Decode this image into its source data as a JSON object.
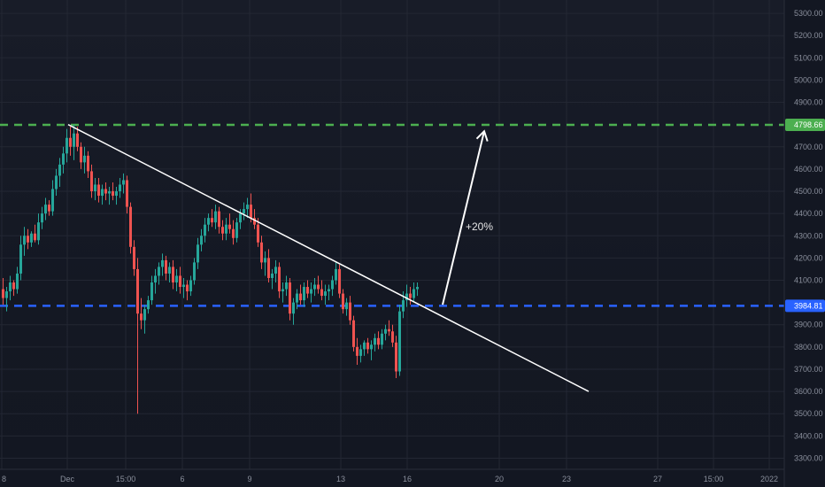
{
  "chart_data": {
    "type": "candlestick",
    "title": "",
    "xlabel": "",
    "ylabel": "",
    "ylim": [
      3250,
      5360
    ],
    "grid": true,
    "y_ticks": [
      {
        "value": 5300,
        "label": "5300.00"
      },
      {
        "value": 5200,
        "label": "5200.00"
      },
      {
        "value": 5100,
        "label": "5100.00"
      },
      {
        "value": 5000,
        "label": "5000.00"
      },
      {
        "value": 4900,
        "label": "4900.00"
      },
      {
        "value": 4700,
        "label": "4700.00"
      },
      {
        "value": 4600,
        "label": "4600.00"
      },
      {
        "value": 4500,
        "label": "4500.00"
      },
      {
        "value": 4400,
        "label": "4400.00"
      },
      {
        "value": 4300,
        "label": "4300.00"
      },
      {
        "value": 4200,
        "label": "4200.00"
      },
      {
        "value": 4100,
        "label": "4100.00"
      },
      {
        "value": 3900,
        "label": "3900.00"
      },
      {
        "value": 3800,
        "label": "3800.00"
      },
      {
        "value": 3700,
        "label": "3700.00"
      },
      {
        "value": 3600,
        "label": "3600.00"
      },
      {
        "value": 3500,
        "label": "3500.00"
      },
      {
        "value": 3400,
        "label": "3400.00"
      },
      {
        "value": 3300,
        "label": "3300.00"
      }
    ],
    "x_ticks": [
      {
        "index": 0,
        "label": "8"
      },
      {
        "index": 74,
        "label": "Dec"
      },
      {
        "index": 140,
        "label": "15:00"
      },
      {
        "index": 204,
        "label": "6"
      },
      {
        "index": 280,
        "label": "9"
      },
      {
        "index": 383,
        "label": "13"
      },
      {
        "index": 458,
        "label": "16"
      },
      {
        "index": 562,
        "label": "20"
      },
      {
        "index": 638,
        "label": "23"
      },
      {
        "index": 741,
        "label": "27"
      },
      {
        "index": 804,
        "label": "15:00"
      },
      {
        "index": 867,
        "label": "2022"
      }
    ],
    "levels": [
      {
        "name": "resistance",
        "value": 4798.66,
        "label": "4798.66",
        "color": "#4caf50"
      },
      {
        "name": "support",
        "value": 3984.81,
        "label": "3984.81",
        "color": "#2962ff"
      }
    ],
    "trendline": {
      "from": [
        75,
        4800
      ],
      "to": [
        663,
        3600
      ],
      "color": "#ffffff"
    },
    "arrow": {
      "from": [
        498,
        3990
      ],
      "to": [
        545,
        4770
      ],
      "label": "+20%",
      "color": "#ffffff"
    },
    "colors": {
      "up": "#26a69a",
      "down": "#ef5350",
      "grid": "#232733"
    },
    "candles": [
      [
        0,
        4060,
        4110,
        3990,
        4020
      ],
      [
        4,
        4020,
        4070,
        3960,
        4050
      ],
      [
        8,
        4050,
        4120,
        4010,
        4090
      ],
      [
        12,
        4090,
        4100,
        4030,
        4060
      ],
      [
        16,
        4060,
        4160,
        4040,
        4130
      ],
      [
        20,
        4130,
        4300,
        4100,
        4260
      ],
      [
        24,
        4260,
        4340,
        4210,
        4300
      ],
      [
        28,
        4300,
        4330,
        4240,
        4270
      ],
      [
        32,
        4270,
        4320,
        4250,
        4310
      ],
      [
        36,
        4310,
        4350,
        4270,
        4280
      ],
      [
        40,
        4280,
        4400,
        4260,
        4360
      ],
      [
        44,
        4360,
        4430,
        4330,
        4400
      ],
      [
        48,
        4400,
        4470,
        4370,
        4440
      ],
      [
        52,
        4440,
        4460,
        4390,
        4410
      ],
      [
        56,
        4410,
        4550,
        4390,
        4510
      ],
      [
        60,
        4510,
        4600,
        4480,
        4570
      ],
      [
        64,
        4570,
        4650,
        4520,
        4620
      ],
      [
        68,
        4620,
        4700,
        4580,
        4670
      ],
      [
        72,
        4670,
        4780,
        4630,
        4740
      ],
      [
        76,
        4740,
        4790,
        4660,
        4700
      ],
      [
        80,
        4700,
        4800,
        4640,
        4760
      ],
      [
        84,
        4760,
        4790,
        4680,
        4700
      ],
      [
        88,
        4700,
        4720,
        4600,
        4630
      ],
      [
        92,
        4630,
        4700,
        4580,
        4660
      ],
      [
        96,
        4660,
        4680,
        4560,
        4590
      ],
      [
        100,
        4590,
        4620,
        4470,
        4500
      ],
      [
        104,
        4500,
        4560,
        4460,
        4530
      ],
      [
        108,
        4530,
        4560,
        4450,
        4480
      ],
      [
        112,
        4480,
        4530,
        4440,
        4510
      ],
      [
        116,
        4510,
        4540,
        4460,
        4490
      ],
      [
        120,
        4490,
        4520,
        4440,
        4500
      ],
      [
        124,
        4500,
        4540,
        4460,
        4480
      ],
      [
        128,
        4480,
        4520,
        4440,
        4500
      ],
      [
        132,
        4500,
        4560,
        4470,
        4530
      ],
      [
        136,
        4530,
        4580,
        4490,
        4550
      ],
      [
        140,
        4550,
        4570,
        4400,
        4430
      ],
      [
        144,
        4430,
        4450,
        4220,
        4250
      ],
      [
        148,
        4250,
        4280,
        4120,
        4150
      ],
      [
        152,
        4150,
        4200,
        3500,
        3950
      ],
      [
        156,
        3950,
        4020,
        3880,
        3920
      ],
      [
        160,
        3920,
        3990,
        3860,
        3970
      ],
      [
        164,
        3970,
        4030,
        3950,
        4010
      ],
      [
        168,
        4010,
        4120,
        3990,
        4090
      ],
      [
        172,
        4090,
        4150,
        4040,
        4120
      ],
      [
        176,
        4120,
        4180,
        4080,
        4160
      ],
      [
        180,
        4160,
        4220,
        4120,
        4190
      ],
      [
        184,
        4190,
        4210,
        4100,
        4130
      ],
      [
        188,
        4130,
        4180,
        4090,
        4160
      ],
      [
        192,
        4160,
        4190,
        4060,
        4090
      ],
      [
        196,
        4090,
        4150,
        4050,
        4120
      ],
      [
        200,
        4120,
        4160,
        4040,
        4070
      ],
      [
        204,
        4070,
        4110,
        4020,
        4080
      ],
      [
        208,
        4080,
        4100,
        4010,
        4050
      ],
      [
        212,
        4050,
        4120,
        4030,
        4100
      ],
      [
        216,
        4100,
        4200,
        4080,
        4180
      ],
      [
        220,
        4180,
        4290,
        4150,
        4260
      ],
      [
        224,
        4260,
        4330,
        4230,
        4300
      ],
      [
        228,
        4300,
        4380,
        4270,
        4350
      ],
      [
        232,
        4350,
        4400,
        4320,
        4380
      ],
      [
        236,
        4380,
        4420,
        4340,
        4360
      ],
      [
        240,
        4360,
        4440,
        4330,
        4410
      ],
      [
        244,
        4410,
        4430,
        4310,
        4340
      ],
      [
        248,
        4340,
        4370,
        4280,
        4310
      ],
      [
        252,
        4310,
        4380,
        4280,
        4350
      ],
      [
        256,
        4350,
        4400,
        4310,
        4330
      ],
      [
        260,
        4330,
        4370,
        4260,
        4290
      ],
      [
        264,
        4290,
        4380,
        4270,
        4360
      ],
      [
        268,
        4360,
        4420,
        4330,
        4400
      ],
      [
        272,
        4400,
        4450,
        4370,
        4420
      ],
      [
        276,
        4420,
        4470,
        4380,
        4440
      ],
      [
        280,
        4440,
        4490,
        4360,
        4380
      ],
      [
        284,
        4380,
        4420,
        4330,
        4350
      ],
      [
        288,
        4350,
        4380,
        4250,
        4270
      ],
      [
        292,
        4270,
        4300,
        4150,
        4180
      ],
      [
        296,
        4180,
        4230,
        4120,
        4200
      ],
      [
        300,
        4200,
        4240,
        4090,
        4110
      ],
      [
        304,
        4110,
        4150,
        4060,
        4130
      ],
      [
        308,
        4130,
        4190,
        4090,
        4160
      ],
      [
        312,
        4160,
        4180,
        4020,
        4050
      ],
      [
        316,
        4050,
        4090,
        4000,
        4060
      ],
      [
        320,
        4060,
        4120,
        4030,
        4090
      ],
      [
        324,
        4090,
        4110,
        3920,
        3950
      ],
      [
        328,
        3950,
        4020,
        3900,
        4000
      ],
      [
        332,
        4000,
        4060,
        3970,
        4040
      ],
      [
        336,
        4040,
        4080,
        3990,
        4010
      ],
      [
        340,
        4010,
        4090,
        3980,
        4070
      ],
      [
        344,
        4070,
        4100,
        4020,
        4040
      ],
      [
        348,
        4040,
        4090,
        4000,
        4060
      ],
      [
        352,
        4060,
        4110,
        4030,
        4080
      ],
      [
        356,
        4080,
        4120,
        4040,
        4060
      ],
      [
        360,
        4060,
        4100,
        4010,
        4030
      ],
      [
        364,
        4030,
        4080,
        3990,
        4050
      ],
      [
        368,
        4050,
        4080,
        4010,
        4060
      ],
      [
        372,
        4060,
        4120,
        4030,
        4100
      ],
      [
        376,
        4100,
        4180,
        4080,
        4150
      ],
      [
        380,
        4150,
        4170,
        4020,
        4040
      ],
      [
        384,
        4040,
        4060,
        3950,
        3970
      ],
      [
        388,
        3970,
        4020,
        3940,
        4000
      ],
      [
        392,
        4000,
        4030,
        3900,
        3920
      ],
      [
        396,
        3920,
        3940,
        3780,
        3800
      ],
      [
        400,
        3800,
        3840,
        3720,
        3760
      ],
      [
        404,
        3760,
        3810,
        3730,
        3790
      ],
      [
        408,
        3790,
        3830,
        3760,
        3820
      ],
      [
        412,
        3820,
        3840,
        3770,
        3790
      ],
      [
        416,
        3790,
        3830,
        3740,
        3810
      ],
      [
        420,
        3810,
        3860,
        3780,
        3840
      ],
      [
        424,
        3840,
        3870,
        3790,
        3810
      ],
      [
        428,
        3810,
        3880,
        3790,
        3860
      ],
      [
        432,
        3860,
        3900,
        3830,
        3880
      ],
      [
        436,
        3880,
        3920,
        3850,
        3870
      ],
      [
        440,
        3870,
        3900,
        3800,
        3820
      ],
      [
        444,
        3820,
        3850,
        3660,
        3690
      ],
      [
        448,
        3690,
        3990,
        3670,
        3960
      ],
      [
        452,
        3960,
        4050,
        3930,
        4010
      ],
      [
        456,
        4010,
        4080,
        3980,
        4040
      ],
      [
        460,
        4040,
        4070,
        3990,
        4020
      ],
      [
        464,
        4020,
        4090,
        4000,
        4060
      ],
      [
        468,
        4060,
        4090,
        4030,
        4070
      ]
    ]
  }
}
